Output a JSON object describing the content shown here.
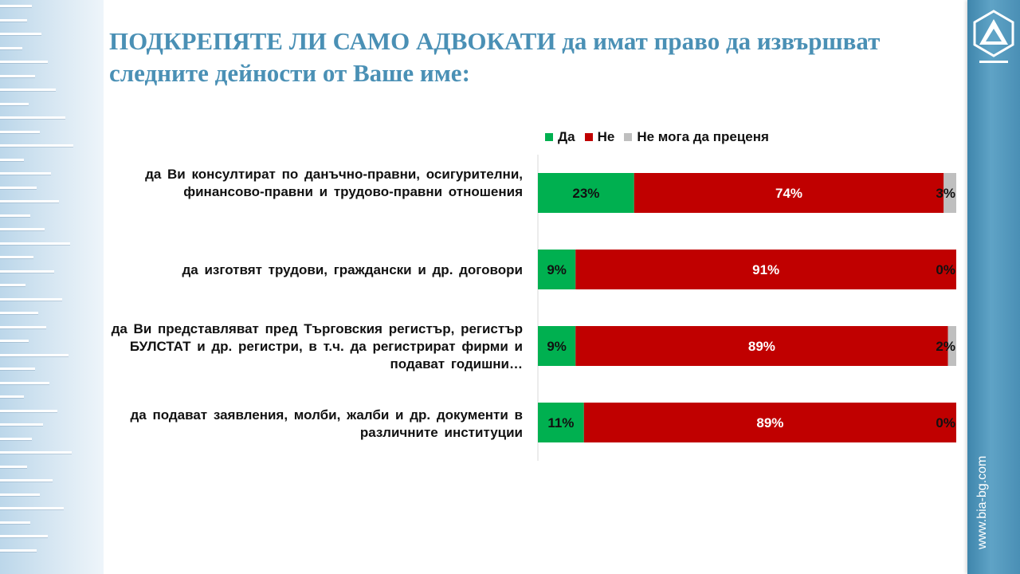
{
  "title": "ПОДКРЕПЯТЕ ЛИ САМО АДВОКАТИ да имат право да извършват следните дейности от Ваше име:",
  "site_url": "www.bia-bg.com",
  "colors": {
    "da": "#00b050",
    "ne": "#c00000",
    "ne_moga": "#bfbfbf",
    "title": "#4a90b5"
  },
  "chart_data": {
    "type": "bar",
    "orientation": "horizontal",
    "stacked": true,
    "normalized": true,
    "legend_position": "top",
    "grid": false,
    "xlim": [
      0,
      100
    ],
    "categories": [
      "да Ви консултират по данъчно-правни, осигурителни, финансово-правни и трудово-правни отношения",
      "да изготвят трудови, граждански и др. договори",
      "да Ви представляват пред Търговския регистър, регистър БУЛСТАТ и др. регистри, в т.ч. да регистрират фирми и подават годишни…",
      "да подават заявления, молби, жалби и др. документи в различните институции"
    ],
    "series": [
      {
        "name": "Да",
        "values": [
          23,
          9,
          9,
          11
        ]
      },
      {
        "name": "Не",
        "values": [
          74,
          91,
          89,
          89
        ]
      },
      {
        "name": "Не мога да преценя",
        "values": [
          3,
          0,
          2,
          0
        ]
      }
    ]
  }
}
